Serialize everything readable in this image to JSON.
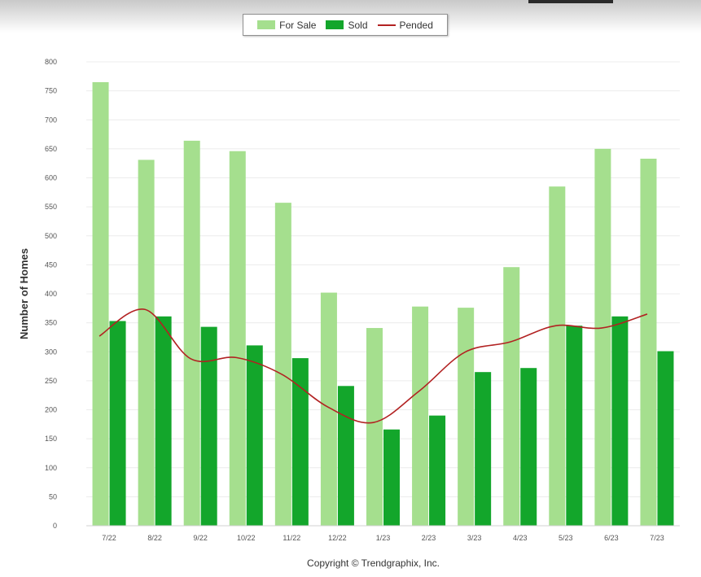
{
  "chart_data": {
    "type": "bar",
    "categories": [
      "7/22",
      "8/22",
      "9/22",
      "10/22",
      "11/22",
      "12/22",
      "1/23",
      "2/23",
      "3/23",
      "4/23",
      "5/23",
      "6/23",
      "7/23"
    ],
    "series": [
      {
        "name": "For Sale",
        "kind": "bar",
        "color": "#a5df8e",
        "values": [
          765,
          631,
          664,
          646,
          557,
          402,
          341,
          378,
          376,
          446,
          585,
          650,
          633
        ]
      },
      {
        "name": "Sold",
        "kind": "bar",
        "color": "#13a62b",
        "values": [
          353,
          361,
          343,
          311,
          289,
          241,
          166,
          190,
          265,
          272,
          345,
          361,
          301
        ]
      },
      {
        "name": "Pended",
        "kind": "line",
        "color": "#b22222",
        "values": [
          327,
          373,
          288,
          290,
          261,
          205,
          178,
          232,
          299,
          317,
          345,
          341,
          365
        ]
      }
    ],
    "title": "",
    "xlabel": "",
    "ylabel": "Number of Homes",
    "ylim": [
      0,
      800
    ],
    "yticks": [
      0,
      50,
      100,
      150,
      200,
      250,
      300,
      350,
      400,
      450,
      500,
      550,
      600,
      650,
      700,
      750,
      800
    ],
    "grid": true,
    "legend_position": "top-center"
  },
  "credit": "Copyright © Trendgraphix, Inc."
}
